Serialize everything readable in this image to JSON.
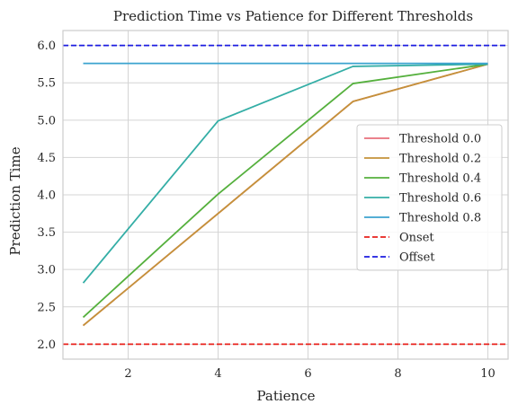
{
  "chart_data": {
    "type": "line",
    "title": "Prediction Time vs Patience for Different Thresholds",
    "xlabel": "Patience",
    "ylabel": "Prediction Time",
    "xlim": [
      0.55,
      10.45
    ],
    "ylim": [
      1.8,
      6.2
    ],
    "xticks": [
      2,
      4,
      6,
      8,
      10
    ],
    "yticks": [
      2.0,
      2.5,
      3.0,
      3.5,
      4.0,
      4.5,
      5.0,
      5.5,
      6.0
    ],
    "grid": true,
    "legend_position": "center-right",
    "x": [
      1,
      4,
      7,
      10
    ],
    "series": [
      {
        "name": "Threshold 0.0",
        "color": "#e8717b",
        "style": "solid",
        "values": [
          2.25,
          3.75,
          5.25,
          5.75
        ]
      },
      {
        "name": "Threshold 0.2",
        "color": "#c4923a",
        "style": "solid",
        "values": [
          2.25,
          3.75,
          5.25,
          5.75
        ]
      },
      {
        "name": "Threshold 0.4",
        "color": "#55b03d",
        "style": "solid",
        "values": [
          2.36,
          4.01,
          5.49,
          5.75
        ]
      },
      {
        "name": "Threshold 0.6",
        "color": "#34aea6",
        "style": "solid",
        "values": [
          2.82,
          4.99,
          5.72,
          5.75
        ]
      },
      {
        "name": "Threshold 0.8",
        "color": "#3ba3cf",
        "style": "solid",
        "values": [
          5.76,
          5.76,
          5.76,
          5.76
        ]
      }
    ],
    "reference_lines": [
      {
        "name": "Onset",
        "value": 2.0,
        "color": "#e8221c",
        "style": "dashed"
      },
      {
        "name": "Offset",
        "value": 6.0,
        "color": "#1c1ce0",
        "style": "dashed"
      }
    ]
  }
}
